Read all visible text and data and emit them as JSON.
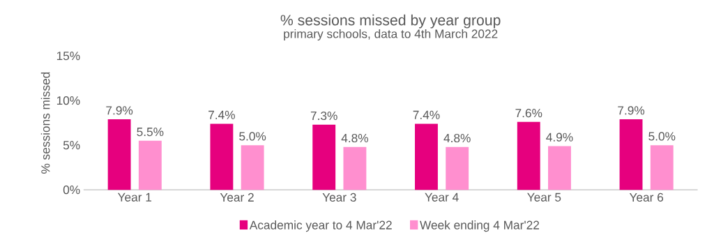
{
  "chart_data": {
    "type": "bar",
    "title": "% sessions missed by year group",
    "subtitle": "primary schools, data to 4th March 2022",
    "ylabel": "% sessions missed",
    "categories": [
      "Year 1",
      "Year 2",
      "Year 3",
      "Year 4",
      "Year 5",
      "Year 6"
    ],
    "series": [
      {
        "name": "Academic year to 4 Mar'22",
        "color": "#e6007e",
        "values": [
          7.9,
          7.4,
          7.3,
          7.4,
          7.6,
          7.9
        ],
        "value_labels": [
          "7.9%",
          "7.4%",
          "7.3%",
          "7.4%",
          "7.6%",
          "7.9%"
        ]
      },
      {
        "name": "Week ending 4 Mar'22",
        "color": "#ff8fcf",
        "values": [
          5.5,
          5.0,
          4.8,
          4.8,
          4.9,
          5.0
        ],
        "value_labels": [
          "5.5%",
          "5.0%",
          "4.8%",
          "4.8%",
          "4.9%",
          "5.0%"
        ]
      }
    ],
    "ylim": [
      0,
      15
    ],
    "yticks": [
      {
        "value": 0,
        "label": "0%"
      },
      {
        "value": 5,
        "label": "5%"
      },
      {
        "value": 10,
        "label": "10%"
      },
      {
        "value": 15,
        "label": "15%"
      }
    ],
    "legend": "bottom"
  }
}
